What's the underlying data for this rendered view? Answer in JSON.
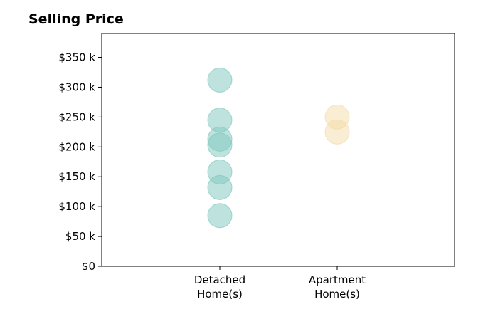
{
  "chart_data": {
    "type": "scatter",
    "title": "Selling Price",
    "xlabel": "",
    "ylabel": "",
    "categories": [
      [
        "Detached",
        "Home(s)"
      ],
      [
        "Apartment",
        "Home(s)"
      ]
    ],
    "series": [
      {
        "category_index": 0,
        "color": "#7ec8bd",
        "values": [
          312,
          245,
          213,
          203,
          158,
          132,
          85
        ]
      },
      {
        "category_index": 1,
        "color": "#f4dca8",
        "values": [
          250,
          225
        ]
      }
    ],
    "yticks": [
      0,
      50,
      100,
      150,
      200,
      250,
      300,
      350
    ],
    "ytick_labels": [
      "$0",
      "$50 k",
      "$100 k",
      "$150 k",
      "$200 k",
      "$250 k",
      "$300 k",
      "$350 k"
    ],
    "ylim": [
      0,
      390
    ],
    "grid": false,
    "legend": "none"
  }
}
